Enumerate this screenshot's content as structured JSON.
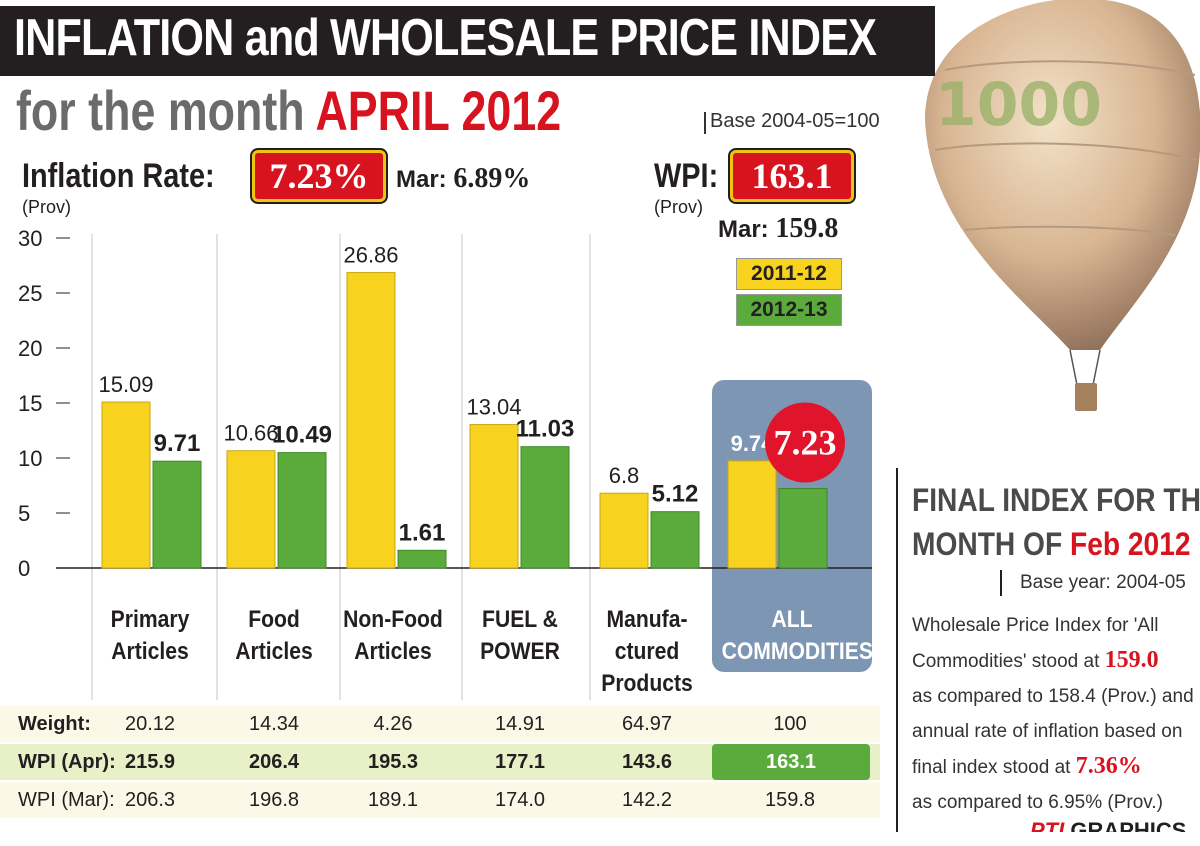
{
  "header": {
    "title": "INFLATION and WHOLESALE PRICE INDEX",
    "subtitle_prefix": "for the month",
    "subtitle_month": "APRIL 2012",
    "base_note": "Base 2004-05=100"
  },
  "inflation": {
    "label": "Inflation Rate:",
    "value": "7.23%",
    "prov": "(Prov)",
    "mar_label": "Mar:",
    "mar_value": "6.89%"
  },
  "wpi": {
    "label": "WPI:",
    "value": "163.1",
    "prov": "(Prov)",
    "mar_label": "Mar:",
    "mar_value": "159.8"
  },
  "chart_data": {
    "type": "bar",
    "categories": [
      "Primary Articles",
      "Food Articles",
      "Non-Food Articles",
      "FUEL & POWER",
      "Manufactured Products",
      "ALL COMMODITIES"
    ],
    "category_lines": [
      [
        "Primary",
        "Articles"
      ],
      [
        "Food",
        "Articles"
      ],
      [
        "Non-Food",
        "Articles"
      ],
      [
        "FUEL &",
        "POWER"
      ],
      [
        "Manufa-",
        "ctured",
        "Products"
      ],
      [
        "ALL",
        "COMMODITIES"
      ]
    ],
    "series": [
      {
        "name": "2011-12",
        "color": "#f7d21e",
        "values": [
          15.09,
          10.66,
          26.86,
          13.04,
          6.8,
          9.74
        ],
        "labels": [
          "15.09",
          "10.66",
          "26.86",
          "13.04",
          "6.8",
          "9.74"
        ]
      },
      {
        "name": "2012-13",
        "color": "#5aab3c",
        "values": [
          9.71,
          10.49,
          1.61,
          11.03,
          5.12,
          7.23
        ],
        "labels": [
          "9.71",
          "10.49",
          "1.61",
          "11.03",
          "5.12",
          "7.23"
        ]
      }
    ],
    "ylim": [
      0,
      30
    ],
    "yticks": [
      0,
      5,
      10,
      15,
      20,
      25,
      30
    ],
    "ytick_labels": [
      "0",
      "5",
      "10",
      "15",
      "20",
      "25",
      "30"
    ],
    "grid": "vertical",
    "legend": "top-right"
  },
  "table": {
    "rows": [
      {
        "label": "Weight:",
        "values": [
          "20.12",
          "14.34",
          "4.26",
          "14.91",
          "64.97",
          "100"
        ]
      },
      {
        "label": "WPI (Apr):",
        "values": [
          "215.9",
          "206.4",
          "195.3",
          "177.1",
          "143.6",
          "163.1"
        ]
      },
      {
        "label": "WPI (Mar):",
        "values": [
          "206.3",
          "196.8",
          "189.1",
          "174.0",
          "142.2",
          "159.8"
        ]
      }
    ]
  },
  "side": {
    "title_line1": "FINAL INDEX FOR THE",
    "title_line2_prefix": "MONTH OF",
    "title_line2_red": "Feb 2012",
    "base": "Base year: 2004-05",
    "line1": "Wholesale Price Index for 'All",
    "line2_prefix": "Commodities' stood at",
    "line2_value": "159.0",
    "line3": "as compared to 158.4 (Prov.) and",
    "line4": "annual rate of inflation based on",
    "line5_prefix": "final index stood at",
    "line5_value": "7.36%",
    "line6": "as compared to 6.95% (Prov.)"
  },
  "credit": {
    "pti": "PTI",
    "graphics": "GRAPHICS"
  },
  "colors": {
    "red": "#d7131f",
    "yellow": "#f7d21e",
    "green": "#5aab3c",
    "highlight_bg": "#7d96b4",
    "dark": "#231f20"
  }
}
